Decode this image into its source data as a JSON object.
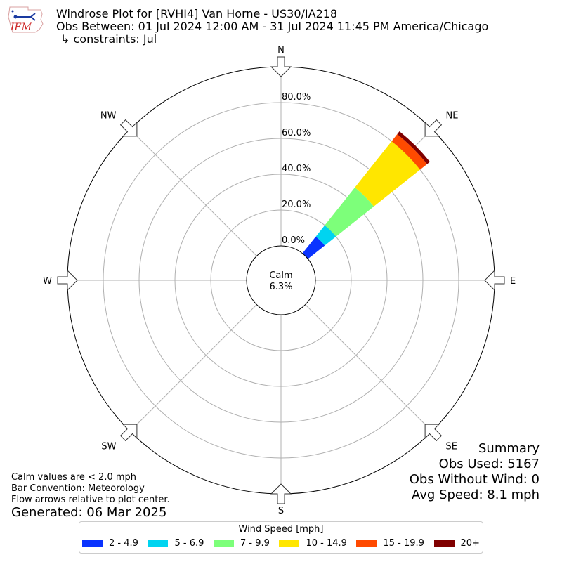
{
  "header": {
    "logo_text": "IEM",
    "title": "Windrose Plot for [RVHI4] Van Horne - US30/IA218",
    "period": "Obs Between: 01 Jul 2024 12:00 AM - 31 Jul 2024 11:45 PM America/Chicago",
    "constraints": "↳ constraints: Jul"
  },
  "chart_data": {
    "type": "windrose",
    "directions": [
      "N",
      "NE",
      "E",
      "SE",
      "S",
      "SW",
      "W",
      "NW"
    ],
    "radial_ticks": [
      "0.0%",
      "20.0%",
      "40.0%",
      "60.0%",
      "80.0%"
    ],
    "radial_max": 100,
    "calm_label": "Calm",
    "calm_value": "6.3%",
    "bars": [
      {
        "direction_deg": 45,
        "segments": [
          {
            "bin": "2 - 4.9",
            "top": 12
          },
          {
            "bin": "5 - 6.9",
            "top": 20
          },
          {
            "bin": "7 - 9.9",
            "top": 47
          },
          {
            "bin": "10 - 14.9",
            "top": 80
          },
          {
            "bin": "15 - 19.9",
            "top": 85
          },
          {
            "bin": "20+",
            "top": 87
          }
        ]
      }
    ],
    "legend_title": "Wind Speed [mph]",
    "bins": [
      {
        "label": "2 - 4.9",
        "color": "#0a33ff"
      },
      {
        "label": "5 - 6.9",
        "color": "#00d4f0"
      },
      {
        "label": "7 - 9.9",
        "color": "#7dff7a"
      },
      {
        "label": "10 - 14.9",
        "color": "#ffe600"
      },
      {
        "label": "15 - 19.9",
        "color": "#ff4a00"
      },
      {
        "label": "20+",
        "color": "#800000"
      }
    ]
  },
  "notes": {
    "calm": "Calm values are < 2.0 mph",
    "bar_convention": "Bar Convention: Meteorology",
    "flow": "Flow arrows relative to plot center.",
    "generated": "Generated: 06 Mar 2025"
  },
  "summary": {
    "title": "Summary",
    "obs_used": "Obs Used: 5167",
    "obs_without_wind": "Obs Without Wind: 0",
    "avg_speed": "Avg Speed: 8.1 mph"
  }
}
